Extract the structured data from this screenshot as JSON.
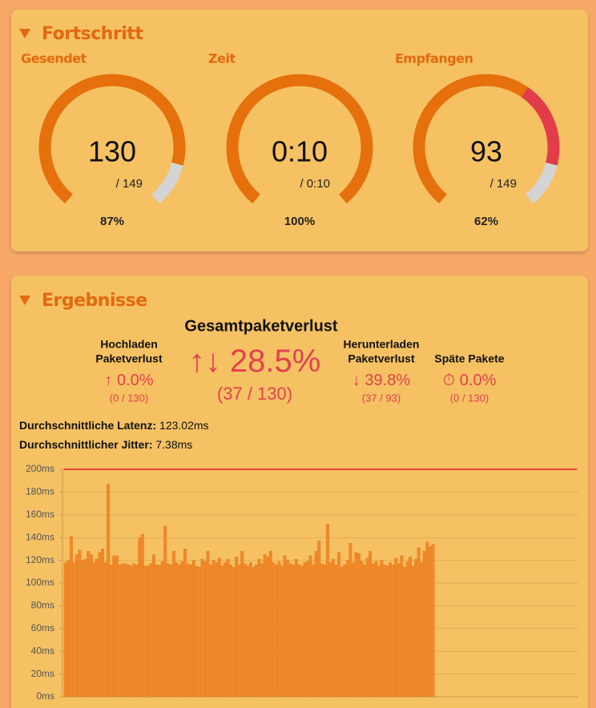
{
  "progress": {
    "title": "Fortschritt",
    "gauges": [
      {
        "label": "Gesendet",
        "value": 130,
        "total": {
          "value": 149,
          "label": "/ 149"
        },
        "percent": {
          "value": 87,
          "label": "87%"
        }
      },
      {
        "label": "Zeit",
        "value": "0:10",
        "total": {
          "label": "/ 0:10"
        },
        "percent": {
          "value": 100,
          "label": "100%"
        }
      },
      {
        "label": "Empfangen",
        "value": 93,
        "total": {
          "value": 149,
          "label": "/ 149"
        },
        "percent": {
          "value": 62,
          "label": "62%"
        }
      }
    ]
  },
  "results": {
    "title": "Ergebnisse",
    "total_loss": {
      "label": "Gesamtpaketverlust",
      "icon": "↑↓",
      "value": "28.5%",
      "count": "(37 / 130)"
    },
    "stats": [
      {
        "label": [
          "Hochladen",
          "Paketverlust"
        ],
        "icon": "↑",
        "value": "0.0%",
        "count": "(0 / 130)"
      },
      {
        "label": [
          "Herunterladen",
          "Paketverlust"
        ],
        "icon": "↓",
        "value": "39.8%",
        "count": "(37 / 93)"
      },
      {
        "label": [
          "Späte Pakete"
        ],
        "icon": "⏱",
        "value": "0.0%",
        "count": "(0 / 130)"
      }
    ],
    "metrics": [
      {
        "label": "Durchschnittliche Latenz:",
        "value": "123.02ms"
      },
      {
        "label": "Durchschnittlicher Jitter:",
        "value": "7.38ms"
      }
    ]
  },
  "chart_data": {
    "type": "bar",
    "color": "#f0892a",
    "grid": true,
    "threshold": 200,
    "threshold_color": "#e8413c",
    "ylim": [
      0,
      200
    ],
    "yticks": [
      {
        "value": 0,
        "label": "0ms"
      },
      {
        "value": 20,
        "label": "20ms"
      },
      {
        "value": 40,
        "label": "40ms"
      },
      {
        "value": 60,
        "label": "60ms"
      },
      {
        "value": 80,
        "label": "80ms"
      },
      {
        "value": 100,
        "label": "100ms"
      },
      {
        "value": 120,
        "label": "120ms"
      },
      {
        "value": 140,
        "label": "140ms"
      },
      {
        "value": 160,
        "label": "160ms"
      },
      {
        "value": 180,
        "label": "180ms"
      },
      {
        "value": 200,
        "label": "200ms"
      }
    ],
    "values": [
      118,
      120,
      141,
      118,
      125,
      129,
      120,
      121,
      128,
      125,
      118,
      121,
      127,
      130,
      118,
      187,
      116,
      124,
      124,
      116,
      117,
      117,
      116,
      115,
      117,
      116,
      140,
      143,
      115,
      115,
      117,
      125,
      116,
      116,
      119,
      150,
      117,
      116,
      128,
      118,
      116,
      119,
      130,
      117,
      116,
      120,
      115,
      114,
      121,
      119,
      128,
      116,
      120,
      118,
      122,
      115,
      118,
      121,
      116,
      114,
      123,
      116,
      128,
      117,
      115,
      118,
      114,
      116,
      121,
      117,
      125,
      123,
      128,
      118,
      116,
      119,
      115,
      124,
      120,
      117,
      116,
      121,
      116,
      115,
      118,
      119,
      124,
      116,
      128,
      137,
      117,
      116,
      152,
      118,
      121,
      116,
      127,
      114,
      116,
      120,
      135,
      118,
      127,
      126,
      119,
      116,
      122,
      128,
      117,
      119,
      115,
      120,
      116,
      115,
      118,
      116,
      122,
      117,
      124,
      114,
      119,
      123,
      115,
      121,
      131,
      118,
      128,
      136,
      132,
      134,
      null,
      null,
      null,
      null,
      null,
      null,
      null,
      null,
      null,
      null,
      null,
      null,
      null,
      null,
      null,
      null,
      null,
      null,
      null,
      null,
      null,
      null,
      null,
      null,
      null,
      null,
      null,
      null,
      null,
      null,
      null,
      null,
      null,
      null,
      null,
      null,
      null,
      null,
      null,
      null,
      null,
      null,
      null,
      null,
      null,
      null,
      null,
      null,
      null,
      null
    ]
  }
}
